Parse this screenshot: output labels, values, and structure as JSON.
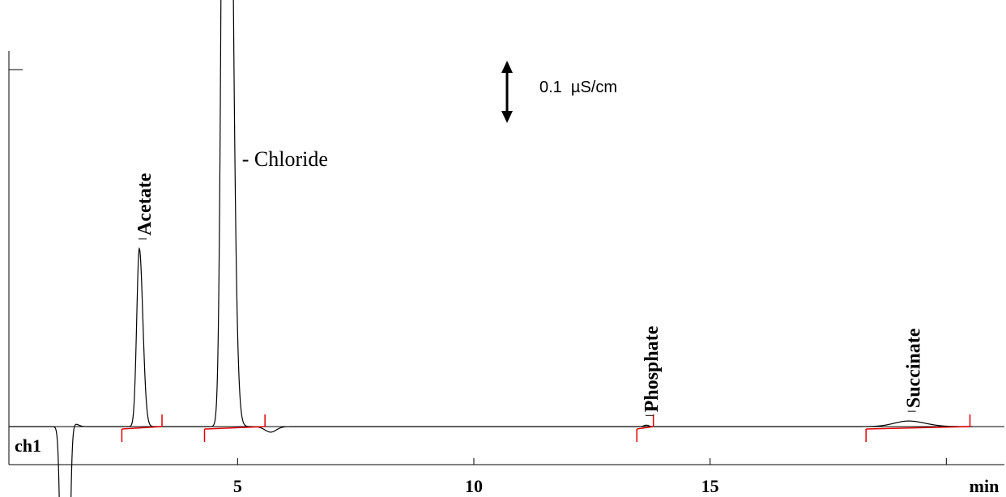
{
  "chart_data": {
    "type": "line",
    "channel_label": "ch1",
    "x_unit": "min",
    "x_ticks": [
      5,
      10,
      15,
      20
    ],
    "x_tick_labels": [
      "5",
      "10",
      "15",
      "min"
    ],
    "xlim": [
      0,
      20.55
    ],
    "scale_bar": {
      "value": 0.1,
      "label": "0.1  µS/cm"
    },
    "peaks": [
      {
        "name": "Acetate",
        "rt": 2.92,
        "height": 0.128,
        "sigma_left": 0.055,
        "sigma_right": 0.075,
        "label_style": "vertical-bold",
        "integration": [
          2.55,
          3.4
        ]
      },
      {
        "name": "Chloride",
        "rt": 4.75,
        "height": 0.9,
        "sigma_left": 0.07,
        "sigma_right": 0.11,
        "label_text": "- Chloride",
        "label_style": "horizontal",
        "integration": [
          4.3,
          5.58
        ]
      },
      {
        "name": "Phosphate",
        "rt": 13.65,
        "height": 0.001,
        "sigma_left": 0.05,
        "sigma_right": 0.05,
        "label_style": "vertical-bold",
        "integration": [
          13.45,
          13.8
        ]
      },
      {
        "name": "Succinate",
        "rt": 19.2,
        "height": 0.004,
        "sigma_left": 0.3,
        "sigma_right": 0.35,
        "label_style": "vertical-bold",
        "integration": [
          18.3,
          20.5
        ]
      }
    ],
    "dip": {
      "rt": 1.35,
      "depth": -0.45,
      "sigma": 0.06
    },
    "colors": {
      "trace": "#000000",
      "integration": "#e00000",
      "axis": "#000000"
    }
  }
}
